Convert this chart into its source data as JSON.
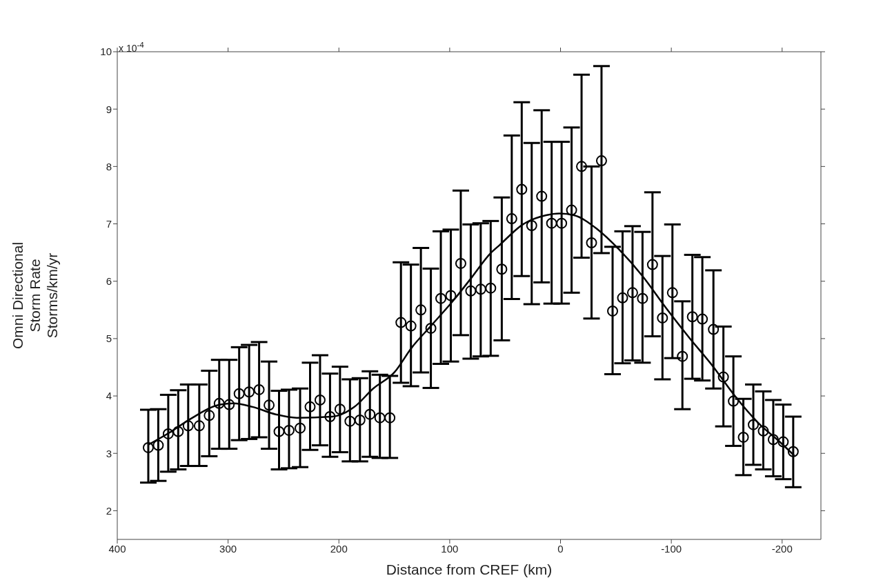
{
  "chart_data": {
    "type": "scatter",
    "xlabel": "Distance from CREF (km)",
    "ylabel": "Omni Directional\nStorm Rate\nStorms/km/yr",
    "annotations": [
      "x 10$^{-4}$"
    ],
    "xlim": [
      400,
      -235
    ],
    "xticks": [
      400,
      300,
      200,
      100,
      0,
      -100,
      -200
    ],
    "ylim": [
      1.5,
      10
    ],
    "yticks": [
      2,
      3,
      4,
      5,
      6,
      7,
      8,
      9,
      10
    ],
    "series": [
      {
        "color": "#000000",
        "marker": "circle",
        "x": [
          372,
          363,
          354,
          345,
          336,
          326,
          317,
          308,
          299,
          290,
          281,
          272,
          263,
          254,
          245,
          235,
          226,
          217,
          208,
          199,
          190,
          181,
          172,
          163,
          154,
          144,
          135,
          126,
          117,
          108,
          99,
          90,
          81,
          72,
          63,
          53,
          44,
          35,
          26,
          17,
          8,
          -1,
          -10,
          -19,
          -28,
          -37,
          -47,
          -56,
          -65,
          -74,
          -83,
          -92,
          -101,
          -110,
          -119,
          -128,
          -138,
          -147,
          -156,
          -165,
          -174,
          -183,
          -192,
          -201,
          -210
        ],
        "values": [
          3.1,
          3.14,
          3.34,
          3.38,
          3.48,
          3.48,
          3.66,
          3.87,
          3.85,
          4.04,
          4.07,
          4.11,
          3.84,
          3.38,
          3.4,
          3.44,
          3.81,
          3.93,
          3.64,
          3.77,
          3.56,
          3.58,
          3.68,
          3.62,
          3.62,
          5.28,
          5.22,
          5.5,
          5.18,
          5.7,
          5.75,
          6.31,
          5.83,
          5.86,
          5.88,
          6.21,
          7.09,
          7.6,
          6.97,
          7.48,
          7.01,
          7.01,
          7.24,
          8.0,
          6.67,
          8.1,
          5.48,
          5.71,
          5.8,
          5.7,
          6.29,
          5.36,
          5.8,
          4.69,
          5.38,
          5.34,
          5.16,
          4.33,
          3.91,
          3.28,
          3.5,
          3.39,
          3.24,
          3.2,
          3.03
        ],
        "errors": [
          [
            2.49,
            3.76
          ],
          [
            2.52,
            3.77
          ],
          [
            2.68,
            4.02
          ],
          [
            2.72,
            4.1
          ],
          [
            2.78,
            4.2
          ],
          [
            2.78,
            4.2
          ],
          [
            2.95,
            4.44
          ],
          [
            3.08,
            4.63
          ],
          [
            3.08,
            4.63
          ],
          [
            3.23,
            4.85
          ],
          [
            3.25,
            4.89
          ],
          [
            3.28,
            4.94
          ],
          [
            3.08,
            4.6
          ],
          [
            2.72,
            4.09
          ],
          [
            2.74,
            4.11
          ],
          [
            2.76,
            4.13
          ],
          [
            3.06,
            4.58
          ],
          [
            3.14,
            4.71
          ],
          [
            2.94,
            4.39
          ],
          [
            3.02,
            4.51
          ],
          [
            2.86,
            4.29
          ],
          [
            2.86,
            4.31
          ],
          [
            2.94,
            4.43
          ],
          [
            2.92,
            4.37
          ],
          [
            2.92,
            4.35
          ],
          [
            4.23,
            6.33
          ],
          [
            4.17,
            6.29
          ],
          [
            4.41,
            6.58
          ],
          [
            4.14,
            6.22
          ],
          [
            4.56,
            6.87
          ],
          [
            4.6,
            6.9
          ],
          [
            5.06,
            7.58
          ],
          [
            4.65,
            6.99
          ],
          [
            4.69,
            7.01
          ],
          [
            4.7,
            7.05
          ],
          [
            4.97,
            7.46
          ],
          [
            5.69,
            8.54
          ],
          [
            6.09,
            9.12
          ],
          [
            5.6,
            8.41
          ],
          [
            5.98,
            8.98
          ],
          [
            5.61,
            8.43
          ],
          [
            5.61,
            8.43
          ],
          [
            5.8,
            8.68
          ],
          [
            6.41,
            9.6
          ],
          [
            5.35,
            8.0
          ],
          [
            6.49,
            9.75
          ],
          [
            4.38,
            6.6
          ],
          [
            4.57,
            6.87
          ],
          [
            4.62,
            6.96
          ],
          [
            4.58,
            6.86
          ],
          [
            5.04,
            7.55
          ],
          [
            4.29,
            6.44
          ],
          [
            4.66,
            6.99
          ],
          [
            3.77,
            5.65
          ],
          [
            4.3,
            6.46
          ],
          [
            4.27,
            6.42
          ],
          [
            4.13,
            6.19
          ],
          [
            3.47,
            5.21
          ],
          [
            3.13,
            4.69
          ],
          [
            2.62,
            3.95
          ],
          [
            2.8,
            4.2
          ],
          [
            2.72,
            4.08
          ],
          [
            2.6,
            3.93
          ],
          [
            2.55,
            3.85
          ],
          [
            2.41,
            3.64
          ]
        ]
      },
      {
        "type": "line",
        "color": "#000000",
        "marker": "none",
        "line_style": "solid",
        "x": [
          372,
          353,
          334,
          307,
          295,
          278,
          257,
          238,
          206,
          186,
          169,
          150,
          134,
          117,
          96,
          80,
          63,
          55,
          34,
          13,
          1,
          -12,
          -33,
          -53,
          -74,
          -95,
          -116,
          -137,
          -157,
          -178,
          -199,
          -211
        ],
        "values": [
          3.15,
          3.36,
          3.6,
          3.85,
          3.87,
          3.81,
          3.68,
          3.62,
          3.64,
          3.81,
          4.13,
          4.41,
          4.85,
          5.22,
          5.68,
          6.07,
          6.49,
          6.63,
          6.99,
          7.15,
          7.18,
          7.15,
          6.91,
          6.55,
          6.09,
          5.54,
          5.02,
          4.53,
          4.01,
          3.54,
          3.18,
          2.96
        ]
      }
    ]
  }
}
